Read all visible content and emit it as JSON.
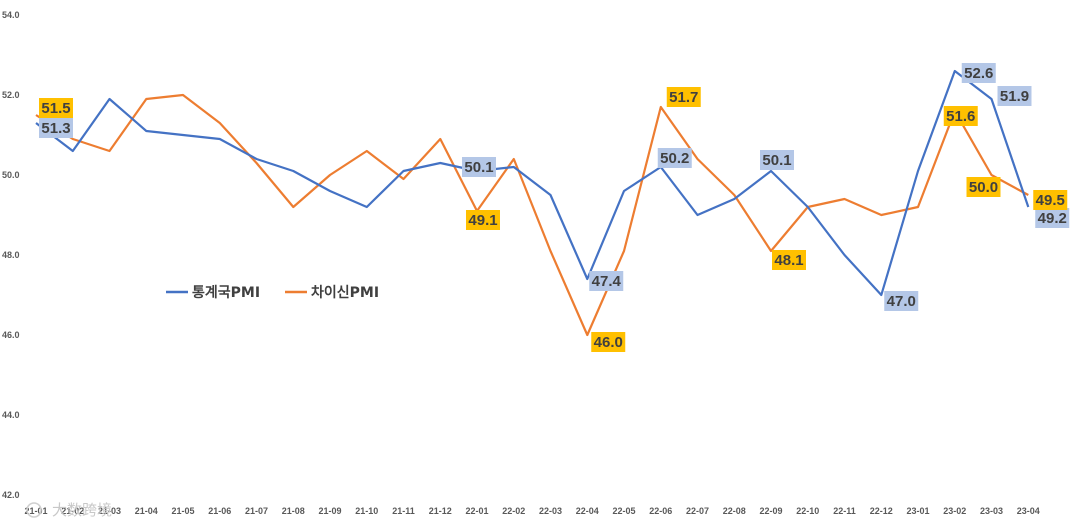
{
  "chart_data": {
    "type": "line",
    "title": "",
    "xlabel": "",
    "ylabel": "",
    "ylim": [
      42.0,
      54.0
    ],
    "yticks": [
      "42.0",
      "44.0",
      "46.0",
      "48.0",
      "50.0",
      "52.0",
      "54.0"
    ],
    "categories": [
      "21-01",
      "21-02",
      "21-03",
      "21-04",
      "21-05",
      "21-06",
      "21-07",
      "21-08",
      "21-09",
      "21-10",
      "21-11",
      "21-12",
      "22-01",
      "22-02",
      "22-03",
      "22-04",
      "22-05",
      "22-06",
      "22-07",
      "22-08",
      "22-09",
      "22-10",
      "22-11",
      "22-12",
      "23-01",
      "23-02",
      "23-03",
      "23-04"
    ],
    "series": [
      {
        "name": "통계국PMI",
        "color": "#4472C4",
        "label_bg": "#B4C7E7",
        "values": [
          51.3,
          50.6,
          51.9,
          51.1,
          51.0,
          50.9,
          50.4,
          50.1,
          49.6,
          49.2,
          50.1,
          50.3,
          50.1,
          50.2,
          49.5,
          47.4,
          49.6,
          50.2,
          49.0,
          49.4,
          50.1,
          49.2,
          48.0,
          47.0,
          50.1,
          52.6,
          51.9,
          49.2
        ],
        "labels": [
          {
            "index": 0,
            "text": "51.3"
          },
          {
            "index": 12,
            "text": "50.1"
          },
          {
            "index": 15,
            "text": "47.4"
          },
          {
            "index": 17,
            "text": "50.2"
          },
          {
            "index": 20,
            "text": "50.1"
          },
          {
            "index": 23,
            "text": "47.0"
          },
          {
            "index": 25,
            "text": "52.6"
          },
          {
            "index": 26,
            "text": "51.9"
          },
          {
            "index": 27,
            "text": "49.2"
          }
        ]
      },
      {
        "name": "차이신PMI",
        "color": "#ED7D31",
        "label_bg": "#FFC000",
        "values": [
          51.5,
          50.9,
          50.6,
          51.9,
          52.0,
          51.3,
          50.3,
          49.2,
          50.0,
          50.6,
          49.9,
          50.9,
          49.1,
          50.4,
          48.1,
          46.0,
          48.1,
          51.7,
          50.4,
          49.5,
          48.1,
          49.2,
          49.4,
          49.0,
          49.2,
          51.6,
          50.0,
          49.5
        ],
        "labels": [
          {
            "index": 0,
            "text": "51.5"
          },
          {
            "index": 12,
            "text": "49.1"
          },
          {
            "index": 15,
            "text": "46.0"
          },
          {
            "index": 17,
            "text": "51.7"
          },
          {
            "index": 20,
            "text": "48.1"
          },
          {
            "index": 25,
            "text": "51.6"
          },
          {
            "index": 26,
            "text": "50.0"
          },
          {
            "index": 27,
            "text": "49.5"
          }
        ]
      }
    ],
    "legend_position": "left-middle"
  },
  "watermark": "大数跨境"
}
